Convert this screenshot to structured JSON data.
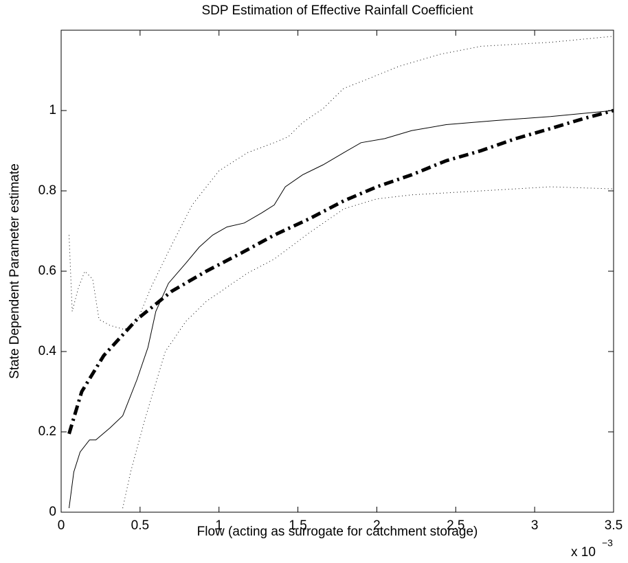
{
  "chart_data": {
    "type": "line",
    "title": "SDP Estimation of Effective Rainfall Coefficient",
    "x_label": "Flow  (acting as surrogate for catchment storage)",
    "y_label": "State Dependent Parameter estimate",
    "x_multiplier": {
      "base": "x 10",
      "exponent": "−3"
    },
    "xlim": [
      0,
      3.5
    ],
    "xticks": [
      0,
      0.5,
      1,
      1.5,
      2,
      2.5,
      3,
      3.5
    ],
    "ylim": [
      0,
      1.2
    ],
    "yticks": [
      0,
      0.2,
      0.4,
      0.6,
      0.8,
      1
    ],
    "grid": false,
    "series": [
      {
        "color": "#000000",
        "linestyle": "solid",
        "linewidth": 1,
        "x": [
          0.05,
          0.08,
          0.12,
          0.18,
          0.22,
          0.31,
          0.39,
          0.48,
          0.55,
          0.6,
          0.68,
          0.79,
          0.875,
          0.96,
          1.05,
          1.16,
          1.27,
          1.35,
          1.42,
          1.53,
          1.66,
          1.79,
          1.9,
          2.05,
          2.22,
          2.44,
          2.75,
          3.1,
          3.5
        ],
        "values": [
          0.01,
          0.1,
          0.15,
          0.18,
          0.18,
          0.21,
          0.24,
          0.33,
          0.41,
          0.5,
          0.57,
          0.62,
          0.66,
          0.69,
          0.71,
          0.72,
          0.745,
          0.765,
          0.81,
          0.84,
          0.865,
          0.895,
          0.92,
          0.93,
          0.95,
          0.965,
          0.975,
          0.985,
          1.0
        ]
      },
      {
        "color": "#000000",
        "linestyle": "dashdot",
        "linewidth": 5,
        "x": [
          0.05,
          0.13,
          0.27,
          0.48,
          0.7,
          0.92,
          1.14,
          1.35,
          1.57,
          1.79,
          2.0,
          2.22,
          2.44,
          2.66,
          2.88,
          3.1,
          3.31,
          3.5
        ],
        "values": [
          0.195,
          0.3,
          0.39,
          0.48,
          0.55,
          0.6,
          0.645,
          0.69,
          0.73,
          0.775,
          0.81,
          0.84,
          0.875,
          0.9,
          0.93,
          0.955,
          0.98,
          1.0
        ]
      },
      {
        "color": "#000000",
        "linestyle": "dotted",
        "linewidth": 1,
        "x": [
          0.05,
          0.07,
          0.11,
          0.15,
          0.2,
          0.24,
          0.31,
          0.4,
          0.48,
          0.57,
          0.7,
          0.83,
          1.0,
          1.18,
          1.35,
          1.44,
          1.53,
          1.66,
          1.79,
          1.92,
          2.14,
          2.4,
          2.66,
          3.1,
          3.5
        ],
        "values": [
          0.69,
          0.5,
          0.56,
          0.6,
          0.58,
          0.48,
          0.465,
          0.455,
          0.475,
          0.56,
          0.665,
          0.765,
          0.85,
          0.895,
          0.92,
          0.935,
          0.97,
          1.005,
          1.055,
          1.075,
          1.11,
          1.14,
          1.16,
          1.17,
          1.185
        ]
      },
      {
        "color": "#000000",
        "linestyle": "dotted",
        "linewidth": 1,
        "x": [
          0.39,
          0.44,
          0.53,
          0.66,
          0.79,
          0.92,
          1.05,
          1.18,
          1.35,
          1.57,
          1.79,
          2.0,
          2.22,
          2.66,
          3.1,
          3.5
        ],
        "values": [
          0.01,
          0.1,
          0.23,
          0.4,
          0.475,
          0.525,
          0.56,
          0.595,
          0.63,
          0.695,
          0.755,
          0.78,
          0.79,
          0.8,
          0.81,
          0.805
        ]
      }
    ]
  }
}
